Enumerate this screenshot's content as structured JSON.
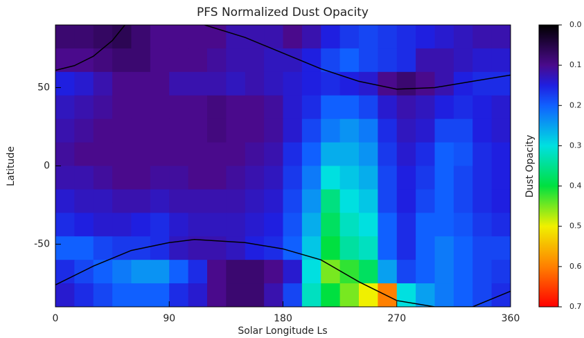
{
  "chart_data": {
    "type": "heatmap",
    "title": "PFS Normalized Dust Opacity",
    "x_label": "Solar Longitude Ls",
    "y_label": "Latitude",
    "colorbar_label": "Dust Opacity",
    "xlim": [
      0,
      360
    ],
    "xticks": [
      0,
      90,
      180,
      270,
      360
    ],
    "ylim": [
      -90,
      90
    ],
    "yticks": [
      -50,
      0,
      50
    ],
    "clim": [
      0,
      0.7
    ],
    "colorbar_ticks": [
      {
        "value": 0,
        "label": "0.0"
      },
      0.1,
      0.2,
      0.3,
      0.4,
      0.5,
      0.6,
      0.7
    ],
    "colorscale": [
      [
        0,
        "#000000"
      ],
      [
        0.1,
        "#4a0a8c"
      ],
      [
        0.15,
        "#1f1fe0"
      ],
      [
        0.2,
        "#1060ff"
      ],
      [
        0.3,
        "#00e0e0"
      ],
      [
        0.4,
        "#00e040"
      ],
      [
        0.5,
        "#f0f000"
      ],
      [
        0.6,
        "#ff8000"
      ],
      [
        0.7,
        "#ff0000"
      ]
    ],
    "x": [
      7.5,
      22.5,
      37.5,
      52.5,
      67.5,
      82.5,
      97.5,
      112.5,
      127.5,
      142.5,
      157.5,
      172.5,
      187.5,
      202.5,
      217.5,
      232.5,
      247.5,
      262.5,
      277.5,
      292.5,
      307.5,
      322.5,
      337.5,
      352.5
    ],
    "y": [
      82.5,
      67.5,
      52.5,
      37.5,
      22.5,
      7.5,
      -7.5,
      -22.5,
      -37.5,
      -52.5,
      -67.5,
      -82.5
    ],
    "values": [
      [
        0.08,
        0.08,
        0.07,
        0.06,
        0.08,
        0.1,
        0.1,
        0.1,
        0.1,
        0.12,
        0.12,
        0.12,
        0.1,
        0.12,
        0.15,
        0.17,
        0.18,
        0.17,
        0.16,
        0.15,
        0.14,
        0.13,
        0.12,
        0.12
      ],
      [
        0.1,
        0.1,
        0.09,
        0.08,
        0.08,
        0.1,
        0.1,
        0.1,
        0.11,
        0.12,
        0.12,
        0.13,
        0.13,
        0.15,
        0.18,
        0.2,
        0.18,
        0.17,
        0.16,
        0.12,
        0.12,
        0.13,
        0.14,
        0.14
      ],
      [
        0.15,
        0.14,
        0.12,
        0.1,
        0.1,
        0.1,
        0.12,
        0.12,
        0.12,
        0.13,
        0.12,
        0.13,
        0.14,
        0.15,
        0.16,
        0.15,
        0.14,
        0.1,
        0.08,
        0.1,
        0.12,
        0.15,
        0.16,
        0.16
      ],
      [
        0.13,
        0.12,
        0.11,
        0.1,
        0.1,
        0.1,
        0.1,
        0.1,
        0.09,
        0.1,
        0.1,
        0.11,
        0.14,
        0.16,
        0.2,
        0.2,
        0.18,
        0.14,
        0.12,
        0.13,
        0.15,
        0.16,
        0.15,
        0.14
      ],
      [
        0.12,
        0.11,
        0.1,
        0.1,
        0.1,
        0.1,
        0.1,
        0.1,
        0.09,
        0.1,
        0.1,
        0.11,
        0.14,
        0.18,
        0.22,
        0.24,
        0.22,
        0.16,
        0.13,
        0.14,
        0.18,
        0.18,
        0.15,
        0.14
      ],
      [
        0.11,
        0.1,
        0.1,
        0.1,
        0.1,
        0.1,
        0.1,
        0.1,
        0.1,
        0.1,
        0.11,
        0.12,
        0.16,
        0.2,
        0.26,
        0.26,
        0.24,
        0.17,
        0.14,
        0.16,
        0.2,
        0.19,
        0.16,
        0.15
      ],
      [
        0.12,
        0.12,
        0.11,
        0.1,
        0.1,
        0.11,
        0.11,
        0.1,
        0.1,
        0.11,
        0.12,
        0.13,
        0.17,
        0.22,
        0.3,
        0.28,
        0.26,
        0.18,
        0.15,
        0.17,
        0.2,
        0.18,
        0.16,
        0.15
      ],
      [
        0.14,
        0.13,
        0.13,
        0.12,
        0.12,
        0.13,
        0.12,
        0.12,
        0.12,
        0.12,
        0.13,
        0.14,
        0.18,
        0.24,
        0.36,
        0.3,
        0.28,
        0.18,
        0.15,
        0.18,
        0.2,
        0.18,
        0.16,
        0.15
      ],
      [
        0.16,
        0.15,
        0.14,
        0.14,
        0.15,
        0.16,
        0.14,
        0.13,
        0.13,
        0.13,
        0.14,
        0.15,
        0.19,
        0.26,
        0.38,
        0.32,
        0.3,
        0.2,
        0.16,
        0.2,
        0.2,
        0.19,
        0.17,
        0.16
      ],
      [
        0.2,
        0.2,
        0.18,
        0.17,
        0.17,
        0.16,
        0.13,
        0.12,
        0.12,
        0.13,
        0.15,
        0.16,
        0.2,
        0.28,
        0.4,
        0.34,
        0.32,
        0.2,
        0.16,
        0.2,
        0.22,
        0.2,
        0.18,
        0.18
      ],
      [
        0.16,
        0.18,
        0.2,
        0.22,
        0.24,
        0.24,
        0.2,
        0.16,
        0.1,
        0.08,
        0.08,
        0.1,
        0.14,
        0.3,
        0.45,
        0.42,
        0.38,
        0.25,
        0.18,
        0.2,
        0.22,
        0.2,
        0.18,
        0.17
      ],
      [
        0.14,
        0.16,
        0.18,
        0.2,
        0.2,
        0.2,
        0.16,
        0.14,
        0.1,
        0.08,
        0.08,
        0.12,
        0.18,
        0.32,
        0.4,
        0.45,
        0.5,
        0.6,
        0.3,
        0.25,
        0.22,
        0.2,
        0.18,
        0.16
      ]
    ],
    "lines": [
      {
        "color": "#000000",
        "x": [
          0,
          15,
          30,
          45,
          55
        ],
        "y": [
          61,
          64,
          70,
          80,
          90
        ]
      },
      {
        "color": "#000000",
        "x": [
          118,
          150,
          180,
          210,
          240,
          270,
          300,
          330,
          360
        ],
        "y": [
          90,
          82,
          72,
          62,
          54,
          49,
          50,
          54,
          58
        ]
      },
      {
        "color": "#000000",
        "x": [
          0,
          30,
          60,
          90,
          110,
          150,
          180,
          210,
          240,
          270,
          300,
          330,
          360
        ],
        "y": [
          -76,
          -64,
          -54,
          -49,
          -47,
          -49,
          -53,
          -60,
          -74,
          -86,
          -90,
          -90,
          -80
        ]
      }
    ]
  }
}
